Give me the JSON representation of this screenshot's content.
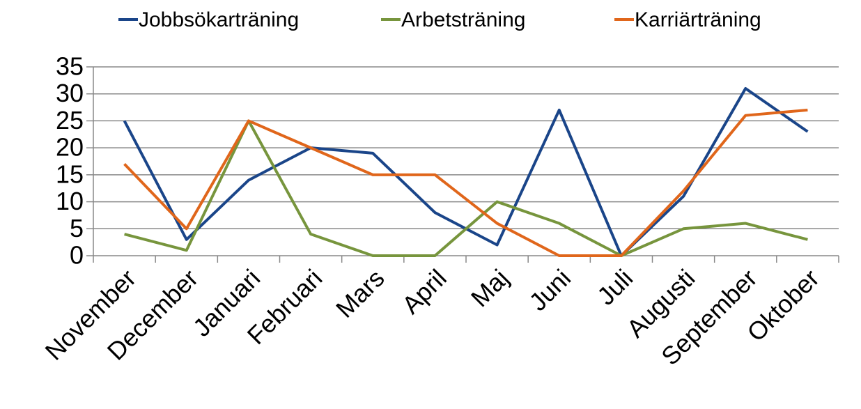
{
  "chart_data": {
    "type": "line",
    "categories": [
      "November",
      "December",
      "Januari",
      "Februari",
      "Mars",
      "April",
      "Maj",
      "Juni",
      "Juli",
      "Augusti",
      "September",
      "Oktober"
    ],
    "series": [
      {
        "name": "Jobbsökarträning",
        "color": "#1a4589",
        "values": [
          25,
          3,
          14,
          20,
          19,
          8,
          2,
          27,
          0,
          11,
          31,
          23
        ]
      },
      {
        "name": "Arbetsträning",
        "color": "#77953d",
        "values": [
          4,
          1,
          25,
          4,
          0,
          0,
          10,
          6,
          0,
          5,
          6,
          3
        ]
      },
      {
        "name": "Karriärträning",
        "color": "#e0661b",
        "values": [
          17,
          5,
          25,
          20,
          15,
          15,
          6,
          0,
          0,
          12,
          26,
          27
        ]
      }
    ],
    "ylim": [
      0,
      35
    ],
    "yticks": [
      0,
      5,
      10,
      15,
      20,
      25,
      30,
      35
    ],
    "grid": true,
    "legend": "top"
  }
}
